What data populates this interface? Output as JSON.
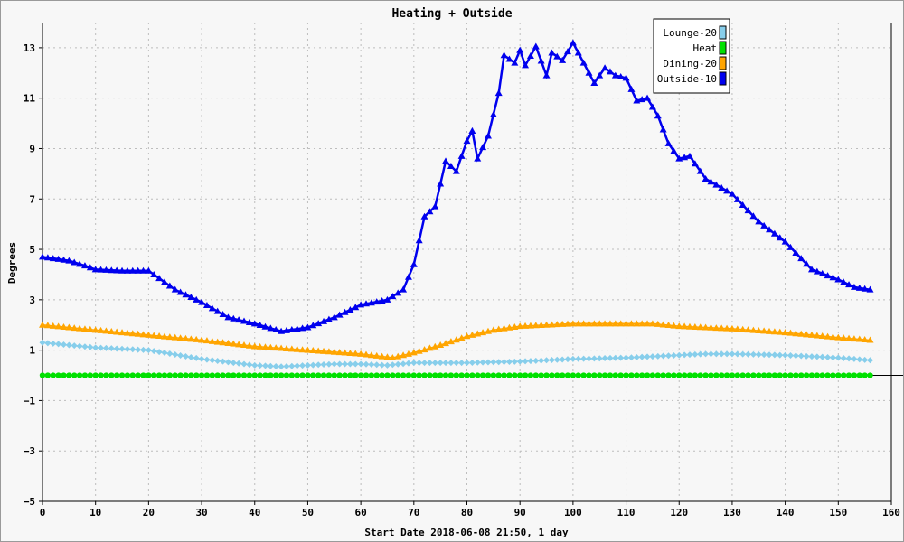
{
  "chart_data": {
    "type": "line",
    "title": "Heating + Outside",
    "xlabel": "Start Date 2018-06-08 21:50, 1 day",
    "ylabel": "Degrees",
    "xlim": [
      0,
      160
    ],
    "ylim": [
      -5,
      14
    ],
    "x_ticks": [
      0,
      10,
      20,
      30,
      40,
      50,
      60,
      70,
      80,
      90,
      100,
      110,
      120,
      130,
      140,
      150,
      160
    ],
    "y_ticks": [
      -5,
      -3,
      -1,
      1,
      3,
      5,
      7,
      9,
      11,
      13
    ],
    "grid": true,
    "legend_position": "top-right",
    "series": [
      {
        "name": "Lounge-20",
        "color": "#87ceeb",
        "marker": "diamond",
        "x": [
          0,
          10,
          20,
          30,
          40,
          45,
          50,
          55,
          60,
          65,
          70,
          80,
          90,
          100,
          110,
          120,
          125,
          130,
          140,
          150,
          156
        ],
        "y": [
          1.3,
          1.1,
          1.0,
          0.65,
          0.4,
          0.35,
          0.4,
          0.45,
          0.45,
          0.4,
          0.5,
          0.5,
          0.55,
          0.65,
          0.7,
          0.8,
          0.85,
          0.85,
          0.8,
          0.7,
          0.6
        ]
      },
      {
        "name": "Heat",
        "color": "#00e000",
        "marker": "circle",
        "x": [
          0,
          20,
          40,
          60,
          80,
          100,
          120,
          140,
          156
        ],
        "y": [
          0,
          0,
          0,
          0,
          0,
          0,
          0,
          0,
          0
        ]
      },
      {
        "name": "Dining-20",
        "color": "#ffa500",
        "marker": "triangle",
        "x": [
          0,
          10,
          20,
          30,
          40,
          50,
          60,
          66,
          70,
          75,
          80,
          85,
          90,
          100,
          110,
          115,
          120,
          130,
          140,
          150,
          156
        ],
        "y": [
          2.0,
          1.8,
          1.6,
          1.4,
          1.15,
          1.0,
          0.85,
          0.7,
          0.9,
          1.2,
          1.55,
          1.8,
          1.95,
          2.05,
          2.05,
          2.05,
          1.95,
          1.85,
          1.7,
          1.5,
          1.4
        ]
      },
      {
        "name": "Outside-10",
        "color": "#0000ee",
        "marker": "triangle",
        "x": [
          0,
          5,
          8,
          10,
          15,
          20,
          25,
          30,
          35,
          40,
          45,
          50,
          55,
          60,
          65,
          68,
          70,
          72,
          74,
          76,
          78,
          80,
          81,
          82,
          84,
          86,
          87,
          89,
          90,
          91,
          93,
          95,
          96,
          98,
          100,
          102,
          104,
          106,
          108,
          110,
          112,
          114,
          116,
          118,
          120,
          122,
          125,
          130,
          135,
          140,
          145,
          150,
          153,
          156
        ],
        "y": [
          4.7,
          4.55,
          4.35,
          4.2,
          4.15,
          4.15,
          3.4,
          2.9,
          2.3,
          2.05,
          1.75,
          1.9,
          2.3,
          2.8,
          3.0,
          3.4,
          4.4,
          6.3,
          6.7,
          8.5,
          8.1,
          9.3,
          9.7,
          8.6,
          9.5,
          11.2,
          12.7,
          12.4,
          12.9,
          12.3,
          13.05,
          11.9,
          12.8,
          12.5,
          13.2,
          12.4,
          11.6,
          12.2,
          11.9,
          11.8,
          10.9,
          11.0,
          10.3,
          9.2,
          8.6,
          8.7,
          7.8,
          7.2,
          6.1,
          5.3,
          4.2,
          3.8,
          3.5,
          3.4
        ]
      }
    ]
  }
}
